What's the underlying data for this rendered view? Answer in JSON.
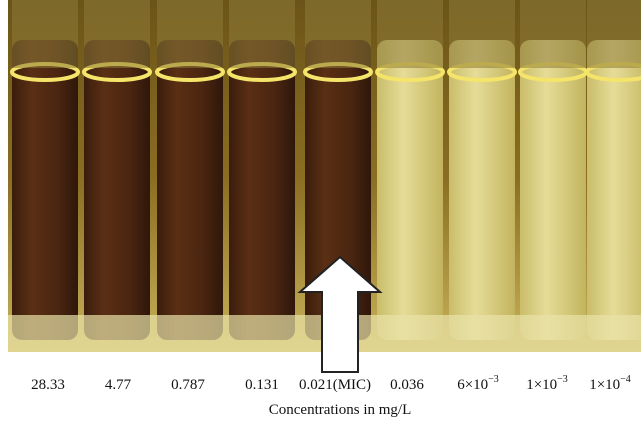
{
  "labels": [
    {
      "text": "28.33"
    },
    {
      "text": "4.77"
    },
    {
      "text": "0.787"
    },
    {
      "text": "0.131"
    },
    {
      "text": "0.021(MIC)"
    },
    {
      "text": "0.036"
    },
    {
      "text": "6×10",
      "exp": "−3"
    },
    {
      "text": "1×10",
      "exp": "−3"
    },
    {
      "text": "1×10",
      "exp": "−4"
    }
  ],
  "caption": "Concentrations in mg/L"
}
